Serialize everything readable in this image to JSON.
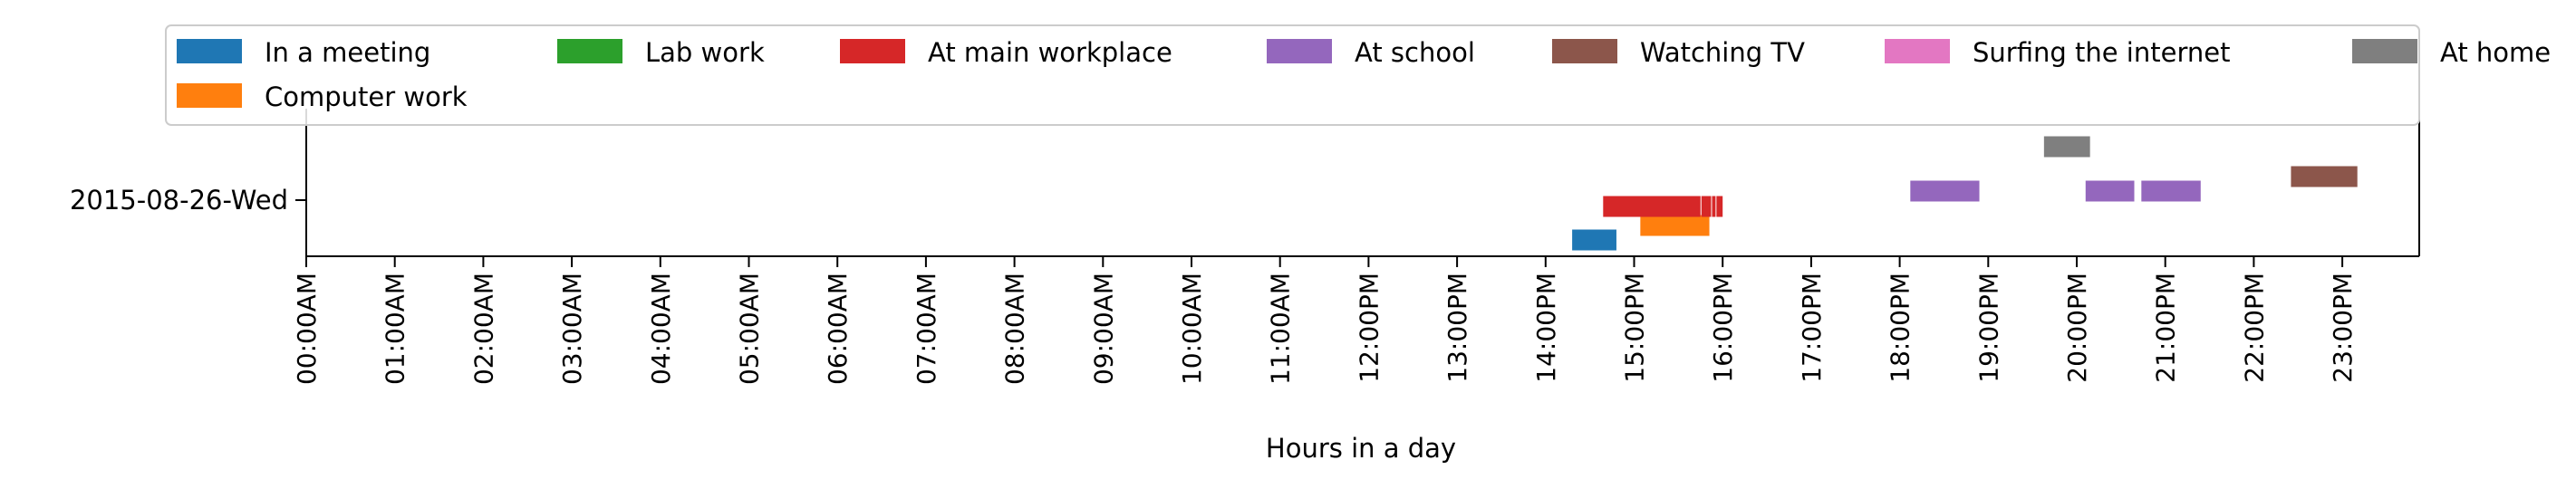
{
  "chart_data": {
    "type": "timeline",
    "title": "",
    "xlabel": "Hours in a day",
    "ylabel": "",
    "xlim": [
      0,
      24
    ],
    "x_tick_labels": [
      "00:00AM",
      "01:00AM",
      "02:00AM",
      "03:00AM",
      "04:00AM",
      "05:00AM",
      "06:00AM",
      "07:00AM",
      "08:00AM",
      "09:00AM",
      "10:00AM",
      "11:00AM",
      "12:00PM",
      "13:00PM",
      "14:00PM",
      "15:00PM",
      "16:00PM",
      "17:00PM",
      "18:00PM",
      "19:00PM",
      "20:00PM",
      "21:00PM",
      "22:00PM",
      "23:00PM"
    ],
    "y_tick_labels": [
      "2015-08-26-Wed"
    ],
    "legend_position": "top",
    "legend": [
      {
        "name": "In a meeting",
        "color": "#1f77b4"
      },
      {
        "name": "Lab work",
        "color": "#2ca02c"
      },
      {
        "name": "At main workplace",
        "color": "#d62728"
      },
      {
        "name": "At school",
        "color": "#9467bd"
      },
      {
        "name": "Watching TV",
        "color": "#8c564b"
      },
      {
        "name": "Surfing the internet",
        "color": "#e377c2"
      },
      {
        "name": "At home",
        "color": "#7f7f7f"
      },
      {
        "name": "Computer work",
        "color": "#ff7f0e"
      }
    ],
    "series": [
      {
        "name": "In a meeting",
        "color": "#1f77b4",
        "level": 0,
        "intervals": [
          [
            14.3,
            14.8
          ]
        ]
      },
      {
        "name": "Computer work",
        "color": "#ff7f0e",
        "level": 1,
        "intervals": [
          [
            15.07,
            15.85
          ]
        ]
      },
      {
        "name": "At main workplace",
        "color": "#d62728",
        "level": 2,
        "intervals": [
          [
            14.65,
            15.75
          ],
          [
            15.76,
            15.87
          ],
          [
            15.88,
            15.92
          ],
          [
            15.93,
            16.0
          ]
        ]
      },
      {
        "name": "At school",
        "color": "#9467bd",
        "level": 3,
        "intervals": [
          [
            18.12,
            18.9
          ],
          [
            20.1,
            20.65
          ],
          [
            20.73,
            21.4
          ]
        ]
      },
      {
        "name": "Watching TV",
        "color": "#8c564b",
        "level": 4,
        "intervals": [
          [
            22.42,
            23.17
          ]
        ]
      },
      {
        "name": "At home",
        "color": "#7f7f7f",
        "level": 5,
        "intervals": [
          [
            19.63,
            20.15
          ]
        ]
      }
    ]
  }
}
